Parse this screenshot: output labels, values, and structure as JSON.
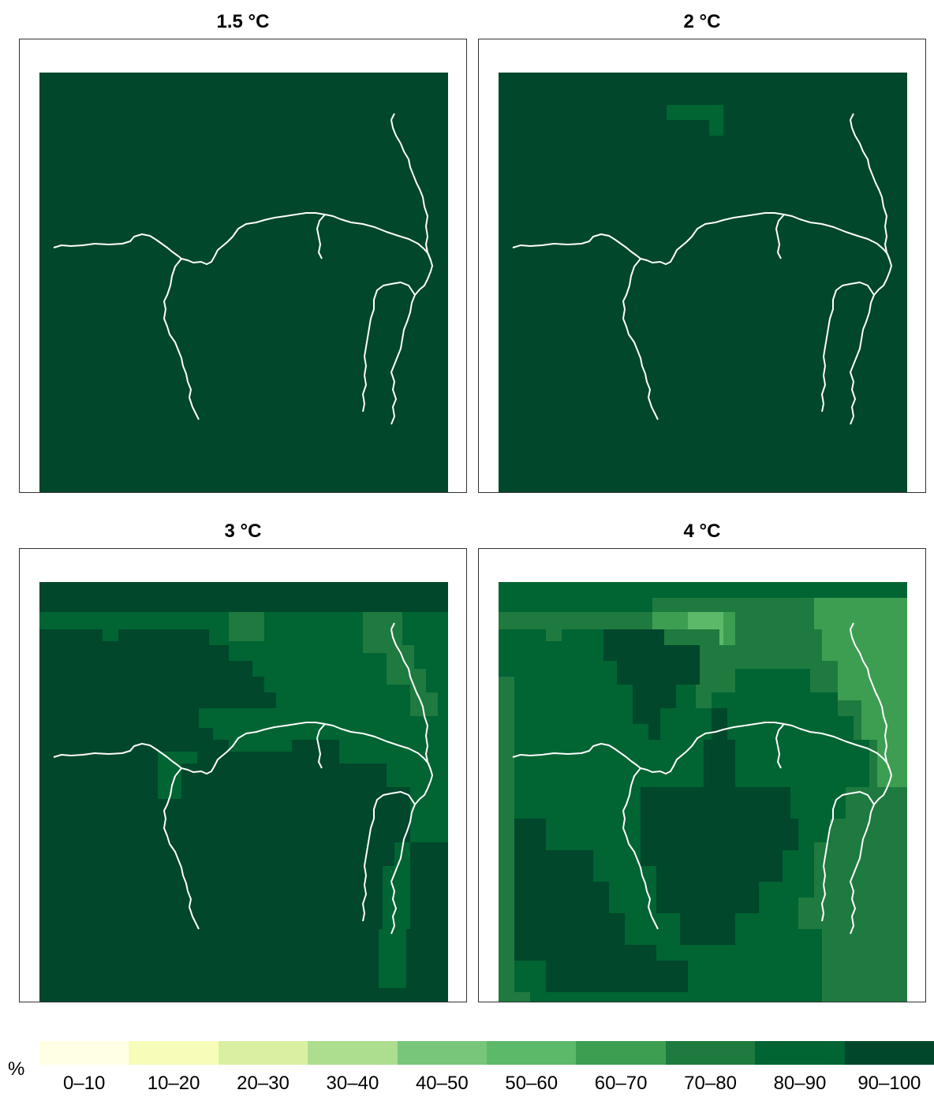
{
  "palette": [
    "#ffffe5",
    "#f7fcb9",
    "#d9f0a3",
    "#addd8e",
    "#78c679",
    "#5cb96a",
    "#3d9e52",
    "#1f7a3f",
    "#006433",
    "#00472b"
  ],
  "panels": [
    {
      "title": "1.5 °C"
    },
    {
      "title": "2 °C"
    },
    {
      "title": "3 °C"
    },
    {
      "title": "4 °C"
    }
  ],
  "legend": {
    "unit": "%",
    "classes": [
      "0–10",
      "10–20",
      "20–30",
      "30–40",
      "40–50",
      "50–60",
      "60–70",
      "70–80",
      "80–90",
      "90–100"
    ]
  }
}
